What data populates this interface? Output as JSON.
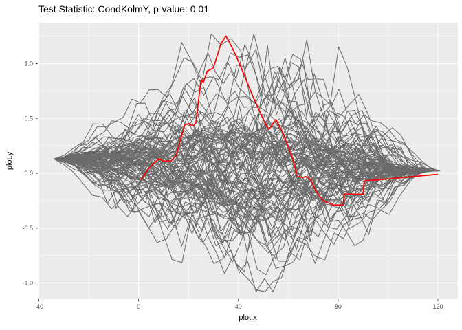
{
  "window": {
    "background": "#FFFFFF"
  },
  "header": {
    "title": "Test Statistic: CondKolmY, p-value: 0.01"
  },
  "style": {
    "panel_bg": "#EBEBEB",
    "grid_major_color": "#FFFFFF",
    "grid_minor_color": "#FFFFFF",
    "tick_color": "#333333",
    "tick_label_color": "#4D4D4D",
    "text_color": "#000000",
    "observed_color": "#FF0000",
    "simulated_color": "#6B6B6B"
  },
  "chart_data": {
    "type": "line",
    "title": "Test Statistic: CondKolmY, p-value: 0.01",
    "subtitle": "",
    "xlabel": "plot.x",
    "ylabel": "plot.y",
    "legend": "none",
    "grid": true,
    "xlim": [
      -40.4,
      128.0
    ],
    "ylim": [
      -1.147,
      1.372
    ],
    "x_ticks": {
      "values": [
        -40,
        0,
        40,
        80,
        120
      ],
      "labels": [
        "-40",
        "0",
        "40",
        "80",
        "120"
      ]
    },
    "y_ticks": {
      "values": [
        1.0,
        0.5,
        0.0,
        -0.5,
        -1.0
      ],
      "labels": [
        "1.0",
        "0.5",
        "0.0",
        "-0.5",
        "-1.0"
      ]
    },
    "x_minor": [
      -20,
      20,
      60,
      100
    ],
    "y_minor": [
      1.25,
      0.75,
      0.25,
      -0.25,
      -0.75
    ],
    "series": [
      {
        "name": "observed-test-statistic",
        "color": "#FF0000",
        "stroke_width": 1.7,
        "points": [
          [
            1,
            -0.06
          ],
          [
            4,
            0.04
          ],
          [
            8,
            0.13
          ],
          [
            10,
            0.11
          ],
          [
            13,
            0.11
          ],
          [
            15,
            0.16
          ],
          [
            18.5,
            0.44
          ],
          [
            20,
            0.45
          ],
          [
            22,
            0.43
          ],
          [
            23,
            0.46
          ],
          [
            25,
            0.85
          ],
          [
            26,
            0.83
          ],
          [
            27.5,
            0.93
          ],
          [
            30,
            0.96
          ],
          [
            33,
            1.18
          ],
          [
            35,
            1.25
          ],
          [
            36,
            1.21
          ],
          [
            38.5,
            1.1
          ],
          [
            41,
            0.97
          ],
          [
            46,
            0.69
          ],
          [
            50,
            0.49
          ],
          [
            52,
            0.4
          ],
          [
            53,
            0.42
          ],
          [
            55,
            0.49
          ],
          [
            58,
            0.36
          ],
          [
            62,
            0.12
          ],
          [
            63.5,
            -0.03
          ],
          [
            66,
            -0.04
          ],
          [
            67,
            -0.03
          ],
          [
            69,
            -0.06
          ],
          [
            71,
            -0.16
          ],
          [
            74,
            -0.25
          ],
          [
            78,
            -0.29
          ],
          [
            82,
            -0.29
          ],
          [
            82.5,
            -0.19
          ],
          [
            90,
            -0.19
          ],
          [
            90.5,
            -0.07
          ],
          [
            96,
            -0.06
          ],
          [
            120,
            -0.01
          ]
        ]
      }
    ],
    "simulated": {
      "name": "simulated-null-paths",
      "description": "bundle of gray simulated test-statistic paths converging at both ends",
      "color": "#6B6B6B",
      "stroke_width": 1.05,
      "count": 100,
      "x_start": -34,
      "y_start": 0.13,
      "x_end_min": 105,
      "x_end_max": 121,
      "y_end": 0.02,
      "amplitude_min": 0.3,
      "amplitude_max": 1.26,
      "y_clamp": [
        -1.08,
        1.27
      ],
      "seed": 12
    }
  }
}
